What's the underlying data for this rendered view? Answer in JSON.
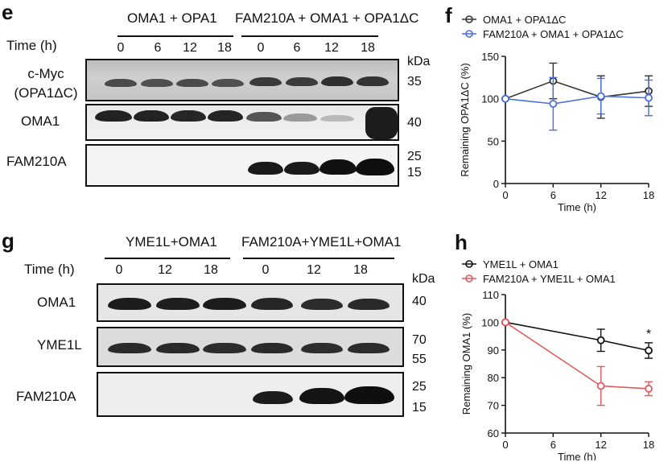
{
  "panels": {
    "e": {
      "letter": "e",
      "groups": [
        "OMA1 + OPA1",
        "FAM210A + OMA1 + OPA1ΔC"
      ],
      "time_label": "Time (h)",
      "times": [
        "0",
        "6",
        "12",
        "18",
        "0",
        "6",
        "12",
        "18"
      ],
      "rows": [
        {
          "label": "c-Myc\n(OPA1ΔC)",
          "markers": [
            "35"
          ]
        },
        {
          "label": "OMA1",
          "markers": [
            "40"
          ]
        },
        {
          "label": "FAM210A",
          "markers": [
            "25",
            "15"
          ]
        }
      ],
      "kda": "kDa"
    },
    "g": {
      "letter": "g",
      "groups": [
        "YME1L+OMA1",
        "FAM210A+YME1L+OMA1"
      ],
      "time_label": "Time (h)",
      "times": [
        "0",
        "12",
        "18",
        "0",
        "12",
        "18"
      ],
      "rows": [
        {
          "label": "OMA1",
          "markers": [
            "40"
          ]
        },
        {
          "label": "YME1L",
          "markers": [
            "70",
            "55"
          ]
        },
        {
          "label": "FAM210A",
          "markers": [
            "25",
            "15"
          ]
        }
      ],
      "kda": "kDa"
    }
  },
  "chart_data": [
    {
      "panel": "f",
      "type": "line",
      "ylabel": "Remaining OPA1ΔC (%)",
      "xlabel": "Time (h)",
      "x": [
        0,
        6,
        12,
        18
      ],
      "xticks": [
        0,
        6,
        12,
        18
      ],
      "yticks": [
        0,
        50,
        100,
        150
      ],
      "ylim": [
        0,
        150
      ],
      "xlim": [
        0,
        18
      ],
      "series": [
        {
          "name": "OMA1 + OPA1ΔC",
          "color": "#333333",
          "values": [
            100,
            121,
            102,
            109
          ],
          "err": [
            0,
            21,
            25,
            18
          ]
        },
        {
          "name": "FAM210A + OMA1 + OPA1ΔC",
          "color": "#4a6fe0",
          "values": [
            100,
            94,
            103,
            101
          ],
          "err": [
            0,
            31,
            21,
            21
          ]
        }
      ],
      "legend": "top"
    },
    {
      "panel": "h",
      "type": "line",
      "ylabel": "Remaining OMA1 (%)",
      "xlabel": "Time (h)",
      "x": [
        0,
        12,
        18
      ],
      "xticks": [
        0,
        6,
        12,
        18
      ],
      "yticks": [
        60,
        70,
        80,
        90,
        100,
        110
      ],
      "ylim": [
        60,
        110
      ],
      "xlim": [
        0,
        18
      ],
      "series": [
        {
          "name": "YME1L + OMA1",
          "color": "#111111",
          "values": [
            100,
            93.5,
            89.8
          ],
          "err": [
            0,
            4,
            2.8
          ]
        },
        {
          "name": "FAM210A + YME1L + OMA1",
          "color": "#e05a5e",
          "values": [
            100,
            77,
            76
          ],
          "err": [
            0,
            7,
            2.5
          ]
        }
      ],
      "annotations": [
        {
          "text": "*",
          "x": 18
        }
      ],
      "legend": "top"
    }
  ]
}
